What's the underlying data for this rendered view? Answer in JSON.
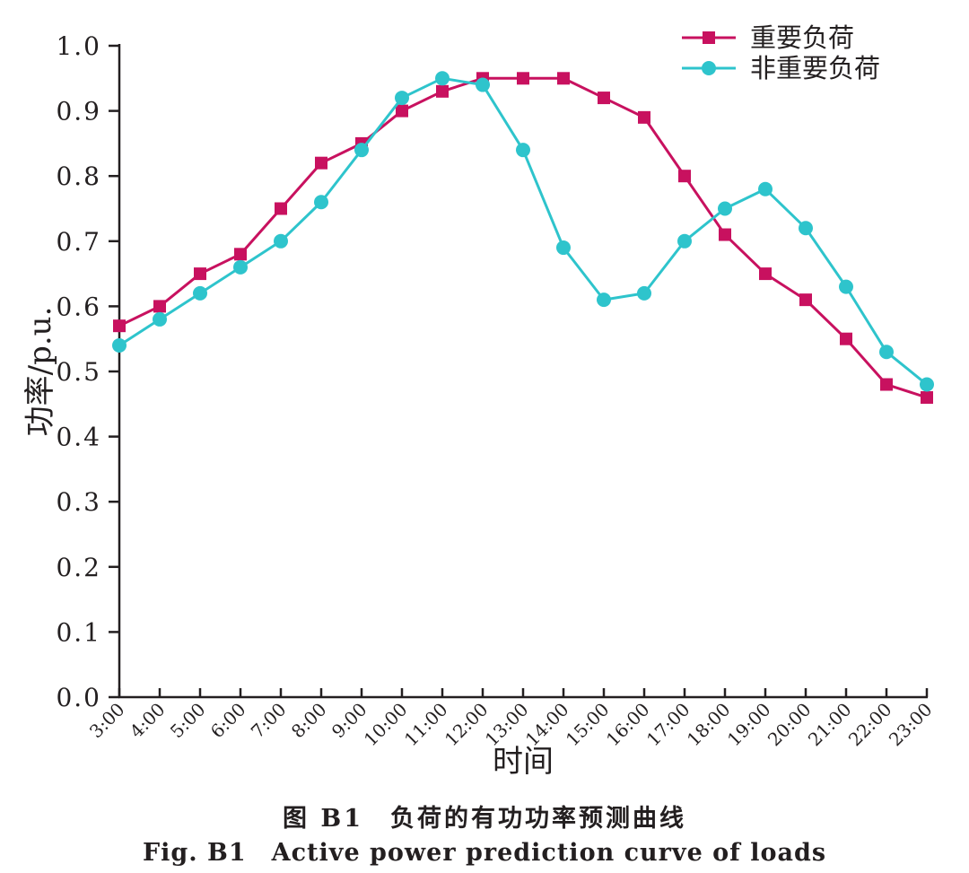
{
  "chart_data": {
    "type": "line",
    "xlabel": "时间",
    "ylabel": "功率/p.u.",
    "categories": [
      "3:00",
      "4:00",
      "5:00",
      "6:00",
      "7:00",
      "8:00",
      "9:00",
      "10:00",
      "11:00",
      "12:00",
      "13:00",
      "14:00",
      "15:00",
      "16:00",
      "17:00",
      "18:00",
      "19:00",
      "20:00",
      "21:00",
      "22:00",
      "23:00"
    ],
    "ylim": [
      0,
      1.0
    ],
    "yticks": [
      "0.0",
      "0.1",
      "0.2",
      "0.3",
      "0.4",
      "0.5",
      "0.6",
      "0.7",
      "0.8",
      "0.9",
      "1.0"
    ],
    "grid": false,
    "legend_position": "top-right",
    "series": [
      {
        "name": "重要负荷",
        "color": "#c8115f",
        "marker": "square",
        "values": [
          0.57,
          0.6,
          0.65,
          0.68,
          0.75,
          0.82,
          0.85,
          0.9,
          0.93,
          0.95,
          0.95,
          0.95,
          0.92,
          0.89,
          0.8,
          0.71,
          0.65,
          0.61,
          0.55,
          0.48,
          0.46
        ]
      },
      {
        "name": "非重要负荷",
        "color": "#2ec4cc",
        "marker": "circle",
        "values": [
          0.54,
          0.58,
          0.62,
          0.66,
          0.7,
          0.76,
          0.84,
          0.92,
          0.95,
          0.94,
          0.84,
          0.69,
          0.61,
          0.62,
          0.7,
          0.75,
          0.78,
          0.72,
          0.63,
          0.53,
          0.48
        ]
      }
    ]
  },
  "caption": {
    "cn": "图 B1　负荷的有功功率预测曲线",
    "en": "Fig. B1　Active power prediction curve of loads"
  }
}
